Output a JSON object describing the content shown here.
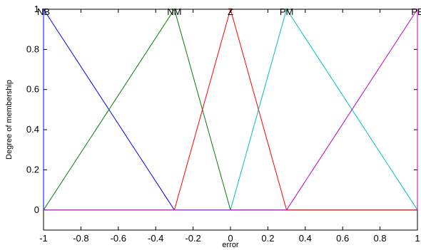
{
  "chart_data": {
    "type": "line",
    "title": "",
    "xlabel": "error",
    "ylabel": "Degree of membership",
    "xlim": [
      -1,
      1
    ],
    "ylim": [
      -0.1,
      1
    ],
    "x_ticks": [
      -1,
      -0.8,
      -0.6,
      -0.4,
      -0.2,
      0,
      0.2,
      0.4,
      0.6,
      0.8,
      1
    ],
    "x_tick_labels": [
      "-1",
      "-0.8",
      "-0.6",
      "-0.4",
      "-0.2",
      "0",
      "0.2",
      "0.4",
      "0.6",
      "0.8",
      "1"
    ],
    "y_ticks": [
      0,
      0.2,
      0.4,
      0.6,
      0.8,
      1
    ],
    "y_tick_labels": [
      "0",
      "0.2",
      "0.4",
      "0.6",
      "0.8",
      "1"
    ],
    "grid": false,
    "series": [
      {
        "name": "NB",
        "color": "#0000ff",
        "x": [
          -1,
          -1,
          -0.3,
          1
        ],
        "y": [
          0,
          1,
          0,
          0
        ]
      },
      {
        "name": "NM",
        "color": "#008000",
        "x": [
          -1,
          -0.3,
          0,
          1
        ],
        "y": [
          0,
          1,
          0,
          0
        ]
      },
      {
        "name": "Z",
        "color": "#ff0000",
        "x": [
          -1,
          -0.3,
          0,
          0.3,
          1
        ],
        "y": [
          0,
          0,
          1,
          0,
          0
        ]
      },
      {
        "name": "PM",
        "color": "#00bfbf",
        "x": [
          -1,
          0,
          0.3,
          1
        ],
        "y": [
          0,
          0,
          1,
          0
        ]
      },
      {
        "name": "PB",
        "color": "#bf00bf",
        "x": [
          -1,
          0.3,
          1,
          1
        ],
        "y": [
          0,
          0,
          1,
          0
        ]
      }
    ]
  }
}
